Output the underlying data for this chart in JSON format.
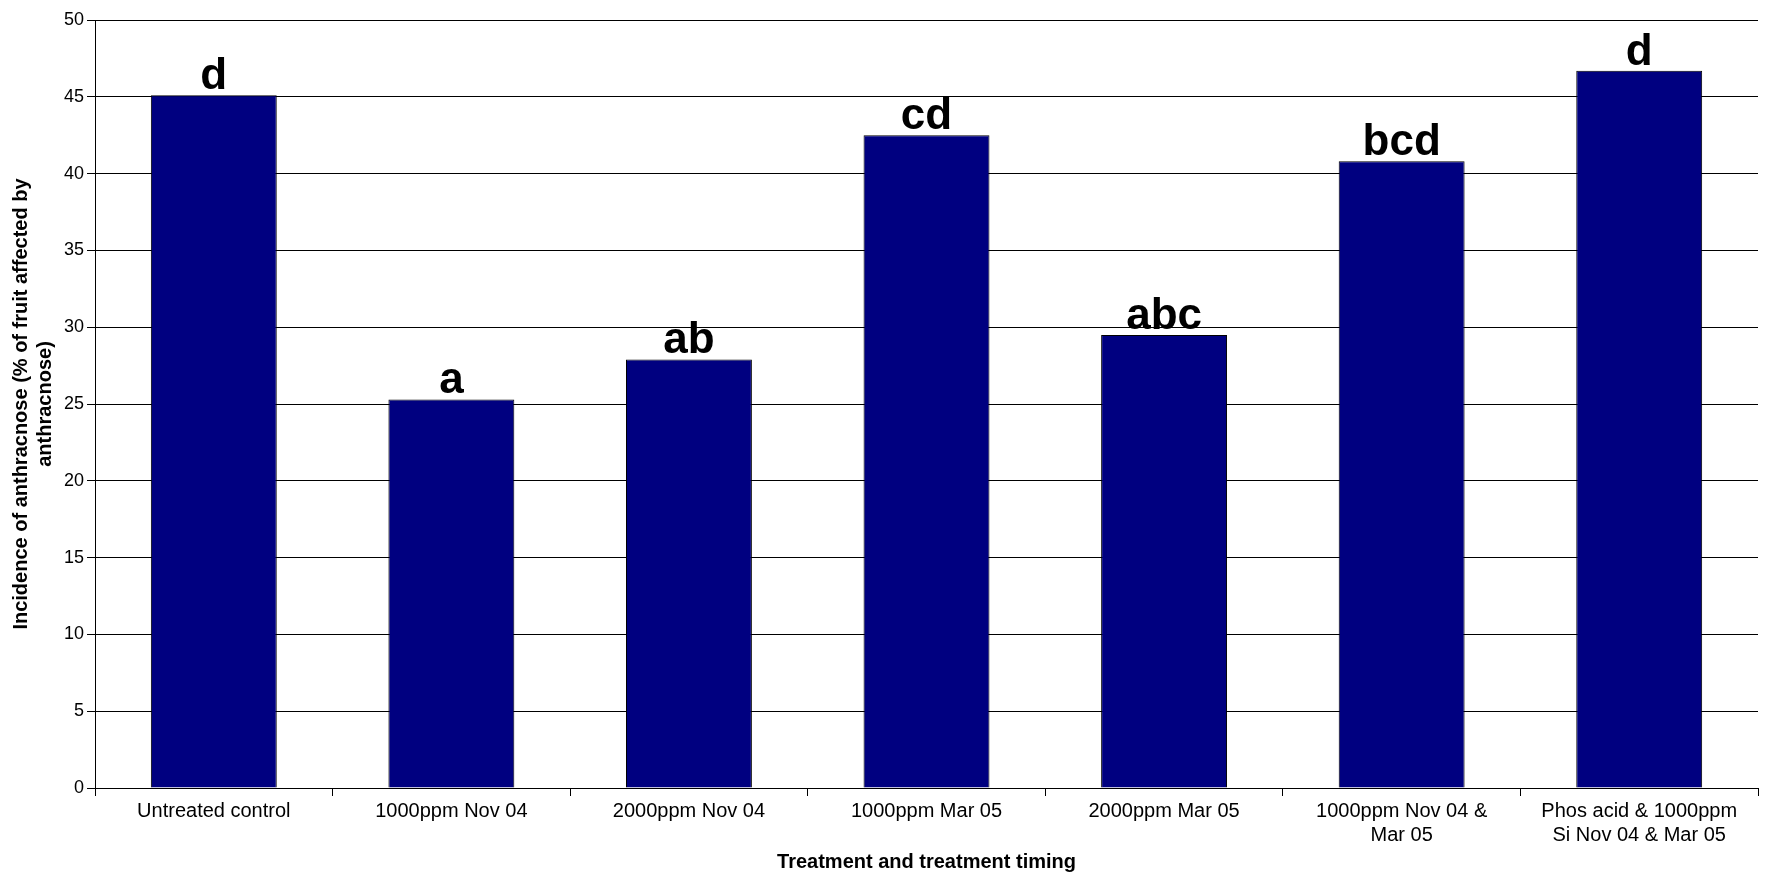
{
  "chart_data": {
    "type": "bar",
    "xlabel": "Treatment and treatment timing",
    "ylabel": "Incidence of anthracnose (% of fruit affected by anthracnose)",
    "categories": [
      "Untreated control",
      "1000ppm Nov 04",
      "2000ppm Nov 04",
      "1000ppm Mar 05",
      "2000ppm Mar 05",
      "1000ppm Nov 04 & Mar 05",
      "Phos acid & 1000ppm Si Nov 04 & Mar 05"
    ],
    "values": [
      45.1,
      25.3,
      27.9,
      42.5,
      29.5,
      40.8,
      46.7
    ],
    "color": "#000080",
    "ylim": [
      0,
      50
    ],
    "yticks": [
      0,
      5,
      10,
      15,
      20,
      25,
      30,
      35,
      40,
      45,
      50
    ],
    "grid": "y",
    "legend": false,
    "annotations": [
      {
        "text": "d",
        "x": "Untreated control",
        "y": 45.1
      },
      {
        "text": "a",
        "x": "1000ppm Nov 04",
        "y": 25.3
      },
      {
        "text": "ab",
        "x": "2000ppm Nov 04",
        "y": 27.9
      },
      {
        "text": "cd",
        "x": "1000ppm Mar 05",
        "y": 42.5
      },
      {
        "text": "abc",
        "x": "2000ppm Mar 05",
        "y": 29.5
      },
      {
        "text": "bcd",
        "x": "1000ppm Nov 04 & Mar 05",
        "y": 40.8
      },
      {
        "text": "d",
        "x": "Phos acid & 1000ppm Si Nov 04 & Mar 05",
        "y": 46.7
      }
    ]
  }
}
